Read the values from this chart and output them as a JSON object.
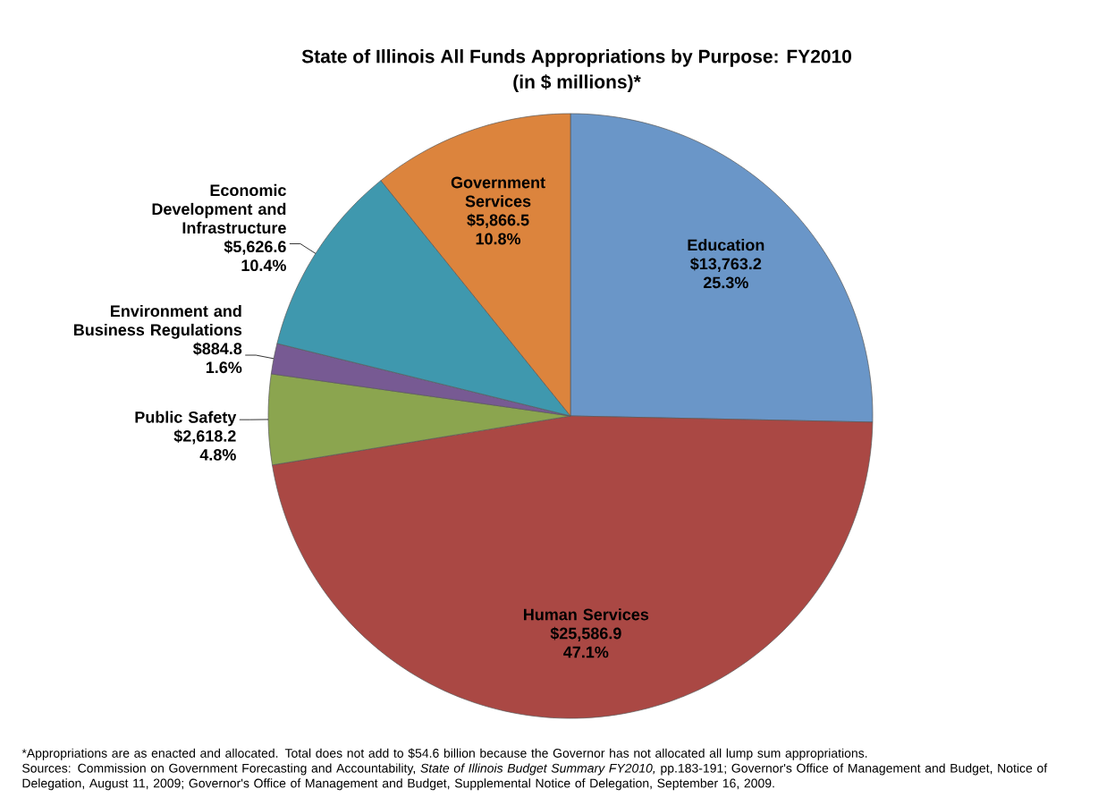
{
  "chart_data": {
    "type": "pie",
    "title": "State of Illinois All Funds Appropriations by Purpose: FY2010",
    "subtitle": "(in $ millions)*",
    "categories": [
      "Education",
      "Human Services",
      "Public Safety",
      "Environment and Business Regulations",
      "Economic Development and Infrastructure",
      "Government Services"
    ],
    "values": [
      13763.2,
      25586.9,
      2618.2,
      884.8,
      5626.6,
      5866.5
    ],
    "colors": [
      "#6a96c8",
      "#aa4844",
      "#8ba54f",
      "#775a93",
      "#3f98ae",
      "#dc843d"
    ],
    "value_labels": [
      "$13,763.2",
      "$25,586.9",
      "$2,618.2",
      "$884.8",
      "$5,626.6",
      "$5,866.5"
    ],
    "annotations": [
      {
        "text": "25.3%",
        "x": "Education"
      },
      {
        "text": "47.1%",
        "x": "Human Services"
      },
      {
        "text": "4.8%",
        "x": "Public Safety"
      },
      {
        "text": "1.6%",
        "x": "Environment and Business Regulations"
      },
      {
        "text": "10.4%",
        "x": "Economic Development and Infrastructure"
      },
      {
        "text": "10.8%",
        "x": "Government Services"
      },
      "*Appropriations are as enacted and allocated. Total does not add to $54.6 billion because the Governor has not allocated all lump sum appropriations.",
      "Sources: Commission on Government Forecasting and Accountability, *State of Illinois Budget Summary FY2010,* pp.183-191; Governor's Office of Management and Budget, Notice of Delegation, August 11, 2009; Governor's Office of Management and Budget, Supplemental Notice of Delegation, September 16, 2009."
    ]
  }
}
